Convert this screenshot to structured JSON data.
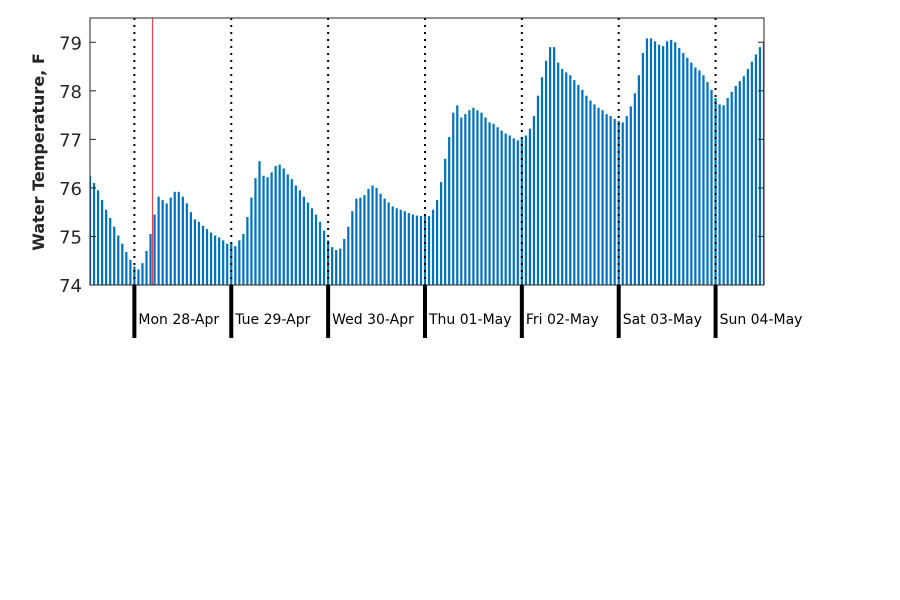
{
  "chart_data": {
    "type": "bar",
    "title": "",
    "xlabel": "",
    "ylabel": "Water Temperature, F",
    "ylim": [
      74,
      79.5
    ],
    "yticks": [
      74,
      75,
      76,
      77,
      78,
      79
    ],
    "xlim_hours": [
      0,
      167
    ],
    "bar_color": "#0072BD",
    "marker_color": "#E8464A",
    "marker_hour": 15.5,
    "grid": false,
    "day_boundaries_hours": [
      11,
      35,
      59,
      83,
      107,
      131,
      155
    ],
    "day_labels": [
      "Mon 28-Apr",
      "Tue 29-Apr",
      "Wed 30-Apr",
      "Thu 01-May",
      "Fri 02-May",
      "Sat 03-May",
      "Sun 04-May"
    ],
    "series": [
      {
        "values": [
          76.25,
          76.1,
          75.95,
          75.75,
          75.55,
          75.38,
          75.2,
          75.02,
          74.85,
          74.68,
          74.52,
          74.38,
          74.32,
          74.45,
          74.7,
          75.05,
          75.45,
          75.82,
          75.75,
          75.68,
          75.8,
          75.92,
          75.92,
          75.82,
          75.68,
          75.5,
          75.35,
          75.3,
          75.22,
          75.15,
          75.08,
          75.02,
          74.98,
          74.92,
          74.85,
          74.88,
          74.8,
          74.92,
          75.05,
          75.4,
          75.8,
          76.2,
          76.55,
          76.25,
          76.22,
          76.32,
          76.45,
          76.48,
          76.4,
          76.28,
          76.18,
          76.05,
          75.95,
          75.82,
          75.7,
          75.58,
          75.45,
          75.3,
          75.12,
          74.92,
          74.78,
          74.72,
          74.75,
          74.95,
          75.2,
          75.52,
          75.78,
          75.8,
          75.85,
          75.98,
          76.05,
          76.0,
          75.88,
          75.78,
          75.7,
          75.62,
          75.58,
          75.55,
          75.52,
          75.48,
          75.45,
          75.43,
          75.42,
          75.45,
          75.42,
          75.55,
          75.75,
          76.12,
          76.6,
          77.05,
          77.55,
          77.7,
          77.45,
          77.52,
          77.6,
          77.65,
          77.6,
          77.55,
          77.45,
          77.35,
          77.32,
          77.25,
          77.18,
          77.12,
          77.08,
          77.02,
          76.98,
          77.02,
          77.08,
          77.22,
          77.48,
          77.9,
          78.28,
          78.62,
          78.9,
          78.9,
          78.58,
          78.45,
          78.38,
          78.32,
          78.22,
          78.12,
          78.02,
          77.9,
          77.8,
          77.72,
          77.65,
          77.6,
          77.52,
          77.48,
          77.42,
          77.38,
          77.35,
          77.48,
          77.68,
          77.95,
          78.32,
          78.78,
          79.08,
          79.08,
          79.02,
          78.95,
          78.92,
          79.02,
          79.05,
          79.0,
          78.88,
          78.78,
          78.68,
          78.58,
          78.48,
          78.42,
          78.32,
          78.18,
          78.02,
          77.85,
          77.72,
          77.7,
          77.85,
          77.98,
          78.1,
          78.2,
          78.3,
          78.45,
          78.6,
          78.75,
          78.9,
          79.0,
          79.18,
          79.15
        ]
      }
    ]
  }
}
